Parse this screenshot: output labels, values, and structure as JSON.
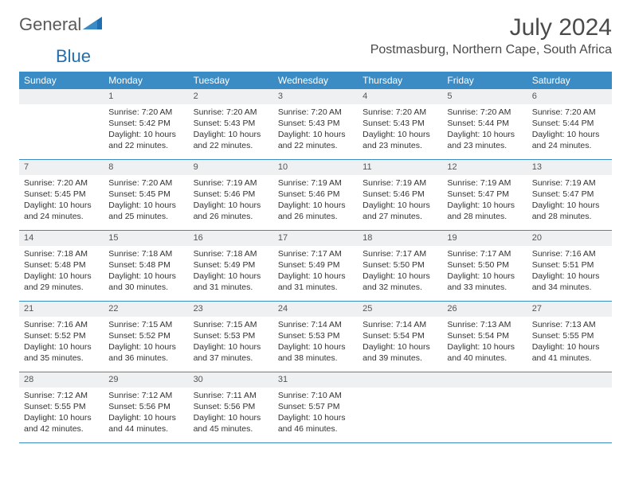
{
  "brand": {
    "name_part1": "General",
    "name_part2": "Blue",
    "logo_color": "#1f6fb2",
    "text_color": "#5a5a5a"
  },
  "header": {
    "month_title": "July 2024",
    "location": "Postmasburg, Northern Cape, South Africa",
    "title_color": "#4a4a4a"
  },
  "colors": {
    "header_bg": "#3b8bc4",
    "header_text": "#ffffff",
    "daynum_bg": "#eef0f1",
    "daynum_text": "#555555",
    "body_text": "#333333",
    "rule": "#3b8bc4"
  },
  "weekdays": [
    "Sunday",
    "Monday",
    "Tuesday",
    "Wednesday",
    "Thursday",
    "Friday",
    "Saturday"
  ],
  "weeks": [
    [
      {
        "num": "",
        "lines": []
      },
      {
        "num": "1",
        "lines": [
          "Sunrise: 7:20 AM",
          "Sunset: 5:42 PM",
          "Daylight: 10 hours and 22 minutes."
        ]
      },
      {
        "num": "2",
        "lines": [
          "Sunrise: 7:20 AM",
          "Sunset: 5:43 PM",
          "Daylight: 10 hours and 22 minutes."
        ]
      },
      {
        "num": "3",
        "lines": [
          "Sunrise: 7:20 AM",
          "Sunset: 5:43 PM",
          "Daylight: 10 hours and 22 minutes."
        ]
      },
      {
        "num": "4",
        "lines": [
          "Sunrise: 7:20 AM",
          "Sunset: 5:43 PM",
          "Daylight: 10 hours and 23 minutes."
        ]
      },
      {
        "num": "5",
        "lines": [
          "Sunrise: 7:20 AM",
          "Sunset: 5:44 PM",
          "Daylight: 10 hours and 23 minutes."
        ]
      },
      {
        "num": "6",
        "lines": [
          "Sunrise: 7:20 AM",
          "Sunset: 5:44 PM",
          "Daylight: 10 hours and 24 minutes."
        ]
      }
    ],
    [
      {
        "num": "7",
        "lines": [
          "Sunrise: 7:20 AM",
          "Sunset: 5:45 PM",
          "Daylight: 10 hours and 24 minutes."
        ]
      },
      {
        "num": "8",
        "lines": [
          "Sunrise: 7:20 AM",
          "Sunset: 5:45 PM",
          "Daylight: 10 hours and 25 minutes."
        ]
      },
      {
        "num": "9",
        "lines": [
          "Sunrise: 7:19 AM",
          "Sunset: 5:46 PM",
          "Daylight: 10 hours and 26 minutes."
        ]
      },
      {
        "num": "10",
        "lines": [
          "Sunrise: 7:19 AM",
          "Sunset: 5:46 PM",
          "Daylight: 10 hours and 26 minutes."
        ]
      },
      {
        "num": "11",
        "lines": [
          "Sunrise: 7:19 AM",
          "Sunset: 5:46 PM",
          "Daylight: 10 hours and 27 minutes."
        ]
      },
      {
        "num": "12",
        "lines": [
          "Sunrise: 7:19 AM",
          "Sunset: 5:47 PM",
          "Daylight: 10 hours and 28 minutes."
        ]
      },
      {
        "num": "13",
        "lines": [
          "Sunrise: 7:19 AM",
          "Sunset: 5:47 PM",
          "Daylight: 10 hours and 28 minutes."
        ]
      }
    ],
    [
      {
        "num": "14",
        "lines": [
          "Sunrise: 7:18 AM",
          "Sunset: 5:48 PM",
          "Daylight: 10 hours and 29 minutes."
        ]
      },
      {
        "num": "15",
        "lines": [
          "Sunrise: 7:18 AM",
          "Sunset: 5:48 PM",
          "Daylight: 10 hours and 30 minutes."
        ]
      },
      {
        "num": "16",
        "lines": [
          "Sunrise: 7:18 AM",
          "Sunset: 5:49 PM",
          "Daylight: 10 hours and 31 minutes."
        ]
      },
      {
        "num": "17",
        "lines": [
          "Sunrise: 7:17 AM",
          "Sunset: 5:49 PM",
          "Daylight: 10 hours and 31 minutes."
        ]
      },
      {
        "num": "18",
        "lines": [
          "Sunrise: 7:17 AM",
          "Sunset: 5:50 PM",
          "Daylight: 10 hours and 32 minutes."
        ]
      },
      {
        "num": "19",
        "lines": [
          "Sunrise: 7:17 AM",
          "Sunset: 5:50 PM",
          "Daylight: 10 hours and 33 minutes."
        ]
      },
      {
        "num": "20",
        "lines": [
          "Sunrise: 7:16 AM",
          "Sunset: 5:51 PM",
          "Daylight: 10 hours and 34 minutes."
        ]
      }
    ],
    [
      {
        "num": "21",
        "lines": [
          "Sunrise: 7:16 AM",
          "Sunset: 5:52 PM",
          "Daylight: 10 hours and 35 minutes."
        ]
      },
      {
        "num": "22",
        "lines": [
          "Sunrise: 7:15 AM",
          "Sunset: 5:52 PM",
          "Daylight: 10 hours and 36 minutes."
        ]
      },
      {
        "num": "23",
        "lines": [
          "Sunrise: 7:15 AM",
          "Sunset: 5:53 PM",
          "Daylight: 10 hours and 37 minutes."
        ]
      },
      {
        "num": "24",
        "lines": [
          "Sunrise: 7:14 AM",
          "Sunset: 5:53 PM",
          "Daylight: 10 hours and 38 minutes."
        ]
      },
      {
        "num": "25",
        "lines": [
          "Sunrise: 7:14 AM",
          "Sunset: 5:54 PM",
          "Daylight: 10 hours and 39 minutes."
        ]
      },
      {
        "num": "26",
        "lines": [
          "Sunrise: 7:13 AM",
          "Sunset: 5:54 PM",
          "Daylight: 10 hours and 40 minutes."
        ]
      },
      {
        "num": "27",
        "lines": [
          "Sunrise: 7:13 AM",
          "Sunset: 5:55 PM",
          "Daylight: 10 hours and 41 minutes."
        ]
      }
    ],
    [
      {
        "num": "28",
        "lines": [
          "Sunrise: 7:12 AM",
          "Sunset: 5:55 PM",
          "Daylight: 10 hours and 42 minutes."
        ]
      },
      {
        "num": "29",
        "lines": [
          "Sunrise: 7:12 AM",
          "Sunset: 5:56 PM",
          "Daylight: 10 hours and 44 minutes."
        ]
      },
      {
        "num": "30",
        "lines": [
          "Sunrise: 7:11 AM",
          "Sunset: 5:56 PM",
          "Daylight: 10 hours and 45 minutes."
        ]
      },
      {
        "num": "31",
        "lines": [
          "Sunrise: 7:10 AM",
          "Sunset: 5:57 PM",
          "Daylight: 10 hours and 46 minutes."
        ]
      },
      {
        "num": "",
        "lines": []
      },
      {
        "num": "",
        "lines": []
      },
      {
        "num": "",
        "lines": []
      }
    ]
  ]
}
